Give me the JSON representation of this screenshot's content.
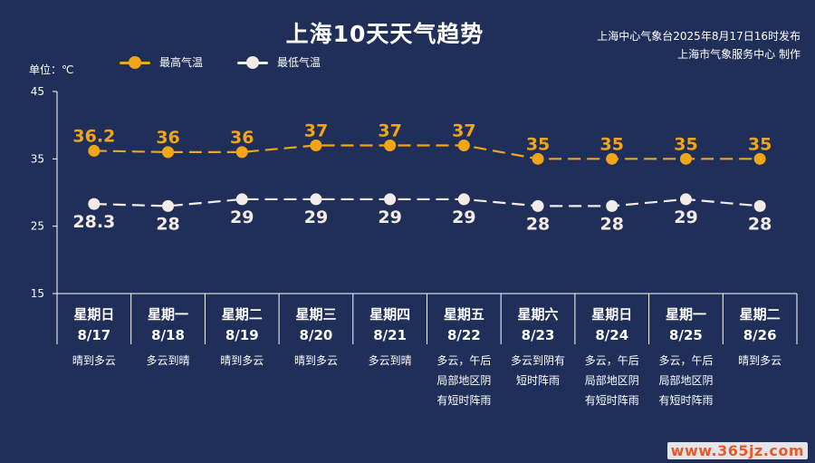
{
  "title": "上海10天天气趋势",
  "issuer": {
    "line1": "上海中心气象台2025年8月17日16时发布",
    "line2": "上海市气象服务中心 制作"
  },
  "unit_label": "单位：℃",
  "watermark": "www.365jz.com",
  "colors": {
    "background": "#1f2f5a",
    "high": "#f2a516",
    "low": "#f3ece6",
    "text": "#ffffff",
    "axis": "#ffffff"
  },
  "chart_data": {
    "type": "line",
    "ylim": [
      15,
      45
    ],
    "yticks": [
      15,
      25,
      35,
      45
    ],
    "grid": false,
    "legend_position": "top-left",
    "categories": [
      "8/17",
      "8/18",
      "8/19",
      "8/20",
      "8/21",
      "8/22",
      "8/23",
      "8/24",
      "8/25",
      "8/26"
    ],
    "weekdays": [
      "星期日",
      "星期一",
      "星期二",
      "星期三",
      "星期四",
      "星期五",
      "星期六",
      "星期日",
      "星期一",
      "星期二"
    ],
    "weather": [
      [
        "晴到多云"
      ],
      [
        "多云到晴"
      ],
      [
        "晴到多云"
      ],
      [
        "晴到多云"
      ],
      [
        "多云到晴"
      ],
      [
        "多云，午后",
        "局部地区阴",
        "有短时阵雨"
      ],
      [
        "多云到阴有",
        "短时阵雨"
      ],
      [
        "多云，午后",
        "局部地区阴",
        "有短时阵雨"
      ],
      [
        "多云，午后",
        "局部地区阴",
        "有短时阵雨"
      ],
      [
        "晴到多云"
      ]
    ],
    "series": [
      {
        "name": "最高气温",
        "values": [
          36.2,
          36,
          36,
          37,
          37,
          37,
          35,
          35,
          35,
          35
        ],
        "labels": [
          "36.2",
          "36",
          "36",
          "37",
          "37",
          "37",
          "35",
          "35",
          "35",
          "35"
        ]
      },
      {
        "name": "最低气温",
        "values": [
          28.3,
          28,
          29,
          29,
          29,
          29,
          28,
          28,
          29,
          28
        ],
        "labels": [
          "28.3",
          "28",
          "29",
          "29",
          "29",
          "29",
          "28",
          "28",
          "29",
          "28"
        ]
      }
    ]
  }
}
